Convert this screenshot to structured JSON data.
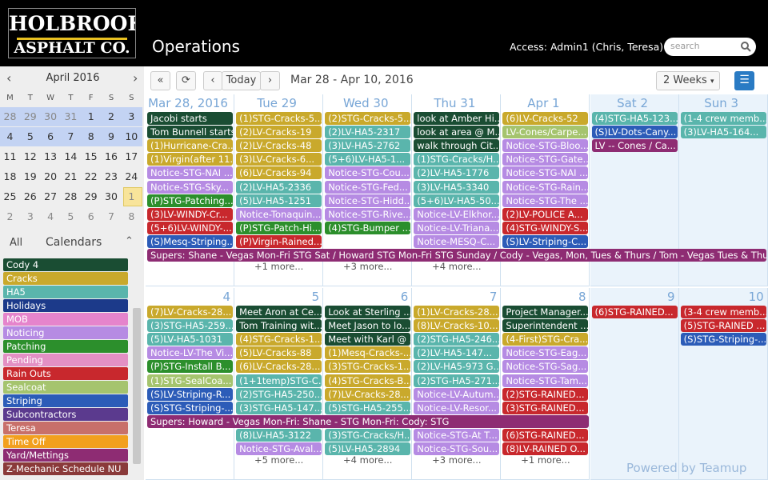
{
  "header": {
    "logo_line1": "HOLBROOK",
    "logo_line2": "ASPHALT CO.",
    "title": "Operations",
    "access": "Access: Admin1 (Chris, Teresa)",
    "search_placeholder": "search"
  },
  "mini_calendar": {
    "month": "April 2016",
    "weekdays": [
      "M",
      "T",
      "W",
      "T",
      "F",
      "S",
      "S"
    ],
    "weeks": [
      [
        28,
        29,
        30,
        31,
        1,
        2,
        3
      ],
      [
        4,
        5,
        6,
        7,
        8,
        9,
        10
      ],
      [
        11,
        12,
        13,
        14,
        15,
        16,
        17
      ],
      [
        18,
        19,
        20,
        21,
        22,
        23,
        24
      ],
      [
        25,
        26,
        27,
        28,
        29,
        30,
        1
      ],
      [
        2,
        3,
        4,
        5,
        6,
        7,
        8
      ]
    ]
  },
  "calendars": {
    "all": "All",
    "heading": "Calendars",
    "items": [
      {
        "name": "Cody 4",
        "color": "#1a4d33"
      },
      {
        "name": "Cracks",
        "color": "#c9a92c"
      },
      {
        "name": "HA5",
        "color": "#5ab5ac"
      },
      {
        "name": "Holidays",
        "color": "#1c3a8a"
      },
      {
        "name": "MOB",
        "color": "#e584cc"
      },
      {
        "name": "Noticing",
        "color": "#b68be3"
      },
      {
        "name": "Patching",
        "color": "#2c8f2c"
      },
      {
        "name": "Pending",
        "color": "#e390c4"
      },
      {
        "name": "Rain Outs",
        "color": "#c8282d"
      },
      {
        "name": "Sealcoat",
        "color": "#a5c46e"
      },
      {
        "name": "Striping",
        "color": "#2c5cb8"
      },
      {
        "name": "Subcontractors",
        "color": "#5b3a8e"
      },
      {
        "name": "Teresa",
        "color": "#c8706a"
      },
      {
        "name": "Time Off",
        "color": "#f2a01e"
      },
      {
        "name": "Yard/Mettings",
        "color": "#8e2c73"
      },
      {
        "name": "Z-Mechanic Schedule NU",
        "color": "#8a3a3a"
      }
    ]
  },
  "toolbar": {
    "today": "Today",
    "range": "Mar 28 - Apr 10, 2016",
    "view": "2 Weeks"
  },
  "weeks": [
    {
      "span": {
        "text": "Supers: Shane - Vegas Mon-Fri STG Sat / Howard STG Mon-Fri STG Sunday / Cody - Vegas, Mon, Tues & Thurs / Tom - Vegas Tues & Thurs",
        "color": "#8e2c73"
      },
      "days": [
        {
          "label": "Mar 28, 2016",
          "events": [
            {
              "text": "Jacobi starts",
              "color": "#1a4d33"
            },
            {
              "text": "Tom Bunnell starts",
              "color": "#1a4d33"
            },
            {
              "text": "(1)Hurricane-Cra...",
              "color": "#c9a92c"
            },
            {
              "text": "(1)Virgin(after 11...",
              "color": "#c9a92c"
            },
            {
              "text": "Notice-STG-NAI ...",
              "color": "#b68be3"
            },
            {
              "text": "Notice-STG-Sky...",
              "color": "#b68be3"
            },
            {
              "text": "(P)STG-Patching...",
              "color": "#2c8f2c"
            },
            {
              "text": "(3)LV-WINDY-Cr...",
              "color": "#c8282d"
            },
            {
              "text": "(5+6)LV-WINDY-...",
              "color": "#c8282d"
            },
            {
              "text": "(S)Mesq-Striping...",
              "color": "#2c5cb8"
            }
          ]
        },
        {
          "label": "Tue 29",
          "events": [
            {
              "text": "(1)STG-Cracks-5...",
              "color": "#c9a92c"
            },
            {
              "text": "(2)LV-Cracks-19",
              "color": "#c9a92c"
            },
            {
              "text": "(2)LV-Cracks-48",
              "color": "#c9a92c"
            },
            {
              "text": "(3)LV-Cracks-6...",
              "color": "#c9a92c"
            },
            {
              "text": "(6)LV-Cracks-94",
              "color": "#c9a92c"
            },
            {
              "text": "(2)LV-HA5-2336",
              "color": "#5ab5ac"
            },
            {
              "text": "(5)LV-HA5-1251",
              "color": "#5ab5ac"
            },
            {
              "text": "Notice-Tonaquin...",
              "color": "#b68be3"
            },
            {
              "text": "(P)STG-Patch-Hi...",
              "color": "#2c8f2c"
            },
            {
              "text": "(P)Virgin-Rained...",
              "color": "#c8282d"
            }
          ],
          "more": "+1 more..."
        },
        {
          "label": "Wed 30",
          "events": [
            {
              "text": "(2)STG-Cracks-5...",
              "color": "#c9a92c"
            },
            {
              "text": "(2)LV-HA5-2317",
              "color": "#5ab5ac"
            },
            {
              "text": "(3)LV-HA5-2762",
              "color": "#5ab5ac"
            },
            {
              "text": "(5+6)LV-HA5-1...",
              "color": "#5ab5ac"
            },
            {
              "text": "Notice-STG-Cou...",
              "color": "#b68be3"
            },
            {
              "text": "Notice-STG-Fed...",
              "color": "#b68be3"
            },
            {
              "text": "Notice-STG-Hidd...",
              "color": "#b68be3"
            },
            {
              "text": "Notice-STG-Rive...",
              "color": "#b68be3"
            },
            {
              "text": "(4)STG-Bumper ...",
              "color": "#2c8f2c"
            }
          ],
          "more": "+3 more..."
        },
        {
          "label": "Thu 31",
          "events": [
            {
              "text": "look at Amber Hi...",
              "color": "#1a4d33"
            },
            {
              "text": "look at area @ M...",
              "color": "#1a4d33"
            },
            {
              "text": "walk through Cit...",
              "color": "#1a4d33"
            },
            {
              "text": "(1)STG-Cracks/H...",
              "color": "#5ab5ac"
            },
            {
              "text": "(2)LV-HA5-1776",
              "color": "#5ab5ac"
            },
            {
              "text": "(3)LV-HA5-3340",
              "color": "#5ab5ac"
            },
            {
              "text": "(5+6)LV-HA5-50...",
              "color": "#5ab5ac"
            },
            {
              "text": "Notice-LV-Elkhor...",
              "color": "#b68be3"
            },
            {
              "text": "Notice-LV-Triana...",
              "color": "#b68be3"
            },
            {
              "text": "Notice-MESQ-C...",
              "color": "#b68be3"
            }
          ],
          "more": "+4 more..."
        },
        {
          "label": "Apr 1",
          "events": [
            {
              "text": "(6)LV-Cracks-52",
              "color": "#c9a92c"
            },
            {
              "text": "LV-Cones/Carpe...",
              "color": "#a5c46e"
            },
            {
              "text": "Notice-STG-Bloo...",
              "color": "#b68be3"
            },
            {
              "text": "Notice-STG-Gate...",
              "color": "#b68be3"
            },
            {
              "text": "Notice-STG-NAI ...",
              "color": "#b68be3"
            },
            {
              "text": "Notice-STG-Rain...",
              "color": "#b68be3"
            },
            {
              "text": "Notice-STG-The ...",
              "color": "#b68be3"
            },
            {
              "text": "(2)LV-POLICE A...",
              "color": "#c8282d"
            },
            {
              "text": "(4)STG-WINDY-S...",
              "color": "#c8282d"
            },
            {
              "text": "(S)LV-Striping-C...",
              "color": "#2c5cb8"
            }
          ]
        },
        {
          "label": "Sat 2",
          "events": [
            {
              "text": "(4)STG-HA5-123...",
              "color": "#5ab5ac"
            },
            {
              "text": "(S)LV-Dots-Cany...",
              "color": "#2c5cb8"
            },
            {
              "text": "LV -- Cones / Ca...",
              "color": "#8e2c73"
            }
          ]
        },
        {
          "label": "Sun 3",
          "events": [
            {
              "text": "(1-4 crew memb...",
              "color": "#5ab5ac"
            },
            {
              "text": "(3)LV-HA5-164...",
              "color": "#5ab5ac"
            }
          ]
        }
      ]
    },
    {
      "span": {
        "text": "Supers: Howard - Vegas Mon-Fri: Shane - STG Mon-Fri: Cody: STG",
        "color": "#8e2c73"
      },
      "days": [
        {
          "label": 4,
          "events": [
            {
              "text": "(7)LV-Cracks-28...",
              "color": "#c9a92c"
            },
            {
              "text": "(3)STG-HA5-259...",
              "color": "#5ab5ac"
            },
            {
              "text": "(5)LV-HA5-1031",
              "color": "#5ab5ac"
            },
            {
              "text": "Notice-LV-The Vi...",
              "color": "#b68be3"
            },
            {
              "text": "(P)STG-Install B...",
              "color": "#2c8f2c"
            },
            {
              "text": "(1)STG-SealCoa...",
              "color": "#a5c46e"
            },
            {
              "text": "(S)LV-Striping-R...",
              "color": "#2c5cb8"
            },
            {
              "text": "(S)STG-Striping-...",
              "color": "#2c5cb8"
            }
          ]
        },
        {
          "label": 5,
          "events": [
            {
              "text": "Meet Aron at Ce...",
              "color": "#1a4d33"
            },
            {
              "text": "Tom Training wit...",
              "color": "#1a4d33"
            },
            {
              "text": "(4)STG-Cracks-1...",
              "color": "#c9a92c"
            },
            {
              "text": "(5)LV-Cracks-88",
              "color": "#c9a92c"
            },
            {
              "text": "(6)LV-Cracks-28...",
              "color": "#c9a92c"
            },
            {
              "text": "(1+1temp)STG-C...",
              "color": "#5ab5ac"
            },
            {
              "text": "(2)STG-HA5-250...",
              "color": "#5ab5ac"
            },
            {
              "text": "(3)STG-HA5-147...",
              "color": "#5ab5ac"
            }
          ],
          "events_after": [
            {
              "text": "(8)LV-HA5-3122",
              "color": "#5ab5ac"
            },
            {
              "text": "Notice-STG-Aval...",
              "color": "#b68be3"
            }
          ],
          "more": "+5 more..."
        },
        {
          "label": 6,
          "events": [
            {
              "text": "Look at Sterling ...",
              "color": "#1a4d33"
            },
            {
              "text": "Meet Jason to lo...",
              "color": "#1a4d33"
            },
            {
              "text": "Meet with Karl @ ...",
              "color": "#1a4d33"
            },
            {
              "text": "(1)Mesq-Cracks-...",
              "color": "#c9a92c"
            },
            {
              "text": "(3)STG-Cracks-1...",
              "color": "#c9a92c"
            },
            {
              "text": "(4)STG-Cracks-B...",
              "color": "#c9a92c"
            },
            {
              "text": "(7)LV-Cracks-28...",
              "color": "#c9a92c"
            },
            {
              "text": "(5)STG-HA5-255...",
              "color": "#5ab5ac"
            }
          ],
          "events_after": [
            {
              "text": "(3)STG-Cracks/H...",
              "color": "#5ab5ac"
            },
            {
              "text": "(5)LV-HA5-2894",
              "color": "#5ab5ac"
            }
          ],
          "more": "+4 more..."
        },
        {
          "label": 7,
          "events": [
            {
              "text": "(1)LV-Cracks-28...",
              "color": "#c9a92c"
            },
            {
              "text": "(8)LV-Cracks-10...",
              "color": "#c9a92c"
            },
            {
              "text": "(2)STG-HA5-246...",
              "color": "#5ab5ac"
            },
            {
              "text": "(2)LV-HA5-147...",
              "color": "#5ab5ac"
            },
            {
              "text": "(2)LV-HA5-973 G...",
              "color": "#5ab5ac"
            },
            {
              "text": "(2)STG-HA5-271...",
              "color": "#5ab5ac"
            },
            {
              "text": "Notice-LV-Autum...",
              "color": "#b68be3"
            },
            {
              "text": "Notice-LV-Resor...",
              "color": "#b68be3"
            }
          ],
          "events_after": [
            {
              "text": "Notice-STG-At T...",
              "color": "#b68be3"
            },
            {
              "text": "Notice-STG-Sou...",
              "color": "#b68be3"
            }
          ],
          "more": "+3 more..."
        },
        {
          "label": 8,
          "events": [
            {
              "text": "Project Manager...",
              "color": "#1a4d33"
            },
            {
              "text": "Superintendent ...",
              "color": "#1a4d33"
            },
            {
              "text": "(4-First)STG-Cra...",
              "color": "#c9a92c"
            },
            {
              "text": "Notice-STG-Eag...",
              "color": "#b68be3"
            },
            {
              "text": "Notice-STG-Sag...",
              "color": "#b68be3"
            },
            {
              "text": "Notice-STG-Tam...",
              "color": "#b68be3"
            },
            {
              "text": "(2)STG-RAINED...",
              "color": "#c8282d"
            },
            {
              "text": "(3)STG-RAINED...",
              "color": "#c8282d"
            }
          ],
          "events_after": [
            {
              "text": "(6)STG-RAINED...",
              "color": "#c8282d"
            },
            {
              "text": "(8)LV-RAINED O...",
              "color": "#c8282d"
            }
          ],
          "more": "+1 more..."
        },
        {
          "label": 9,
          "events": [
            {
              "text": "(6)STG-RAINED...",
              "color": "#c8282d"
            }
          ]
        },
        {
          "label": 10,
          "events": [
            {
              "text": "(3-4 crew memb...",
              "color": "#c8282d"
            },
            {
              "text": "(5)STG-RAINED ...",
              "color": "#c8282d"
            },
            {
              "text": "(S)STG-Striping-...",
              "color": "#2c5cb8"
            }
          ]
        }
      ]
    }
  ],
  "footer": "Powered by Teamup"
}
